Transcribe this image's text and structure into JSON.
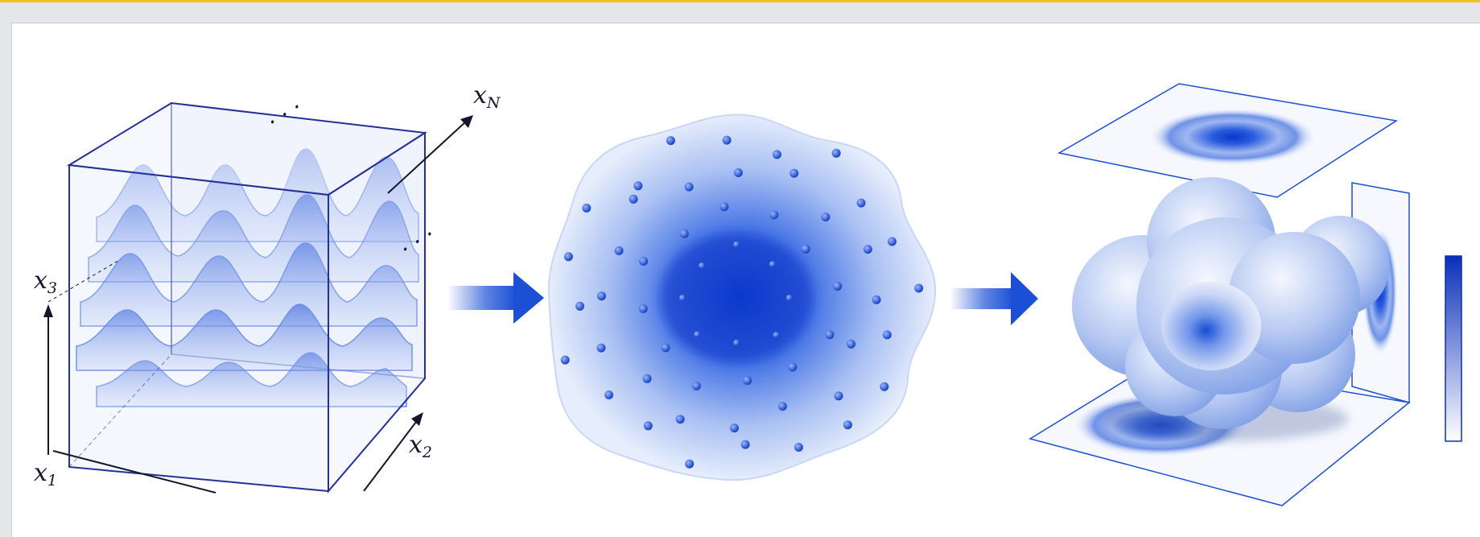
{
  "figure": {
    "axis_labels": {
      "x1": "x",
      "x1_sub": "1",
      "x2": "x",
      "x2_sub": "2",
      "x3": "x",
      "x3_sub": "3",
      "xN": "x",
      "xN_sub": "N",
      "ellipsis": "· · ·"
    },
    "colors": {
      "accent": "#1a4fd6",
      "deep": "#0a2fb8",
      "light": "#dde6fb",
      "frame": "#25309a",
      "highlight": "#f2c41a"
    },
    "panels": [
      "high-dimensional-wavefunction",
      "electron-density-cloud",
      "3d-density-with-projections"
    ]
  }
}
